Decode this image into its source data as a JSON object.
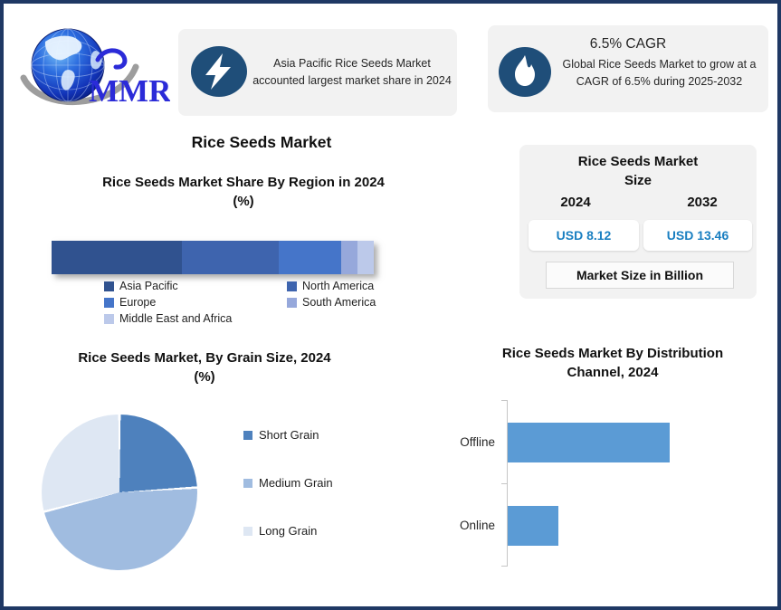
{
  "page": {
    "border_color": "#1F3864",
    "background": "#FFFFFF",
    "callout_bg": "#F2F2F2",
    "icon_circle_color": "#1F4E79"
  },
  "logo": {
    "text": "MMR",
    "text_color": "#2B2BD8"
  },
  "callouts": [
    {
      "icon": "lightning-icon",
      "text": "Asia Pacific Rice Seeds Market accounted largest market share in 2024"
    },
    {
      "icon": "flame-icon",
      "heading": "6.5% CAGR",
      "text": "Global Rice Seeds Market to grow at a CAGR of 6.5% during 2025-2032"
    }
  ],
  "main_title": "Rice Seeds Market",
  "market_size_panel": {
    "title": "Rice Seeds Market Size",
    "title_lines": [
      "Rice Seeds Market",
      "Size"
    ],
    "years": [
      "2024",
      "2032"
    ],
    "values": [
      "USD 8.12",
      "USD 13.46"
    ],
    "value_color": "#1A7FC1",
    "note": "Market Size in Billion"
  },
  "chart_data": [
    {
      "type": "bar",
      "subtype": "stacked-horizontal-100pct",
      "title": "Rice Seeds Market Share By Region in 2024 (%)",
      "title_lines": [
        "Rice Seeds Market Share By Region in 2024",
        "(%)"
      ],
      "unit": "%",
      "series": [
        {
          "name": "Asia Pacific",
          "value": 40.5,
          "color": "#30528F"
        },
        {
          "name": "North America",
          "value": 30,
          "color": "#3E64AE"
        },
        {
          "name": "Europe",
          "value": 19.5,
          "color": "#4575C9"
        },
        {
          "name": "South America",
          "value": 5,
          "color": "#96A8DB"
        },
        {
          "name": "Middle East and Africa",
          "value": 5,
          "color": "#BCC9EA"
        }
      ],
      "legend_position": "bottom",
      "axes_shown": false
    },
    {
      "type": "pie",
      "title": "Rice Seeds Market, By Grain Size, 2024 (%)",
      "title_lines": [
        "Rice Seeds Market, By Grain Size, 2024",
        "(%)"
      ],
      "unit": "%",
      "start_angle_deg": 0,
      "direction": "clockwise",
      "slices": [
        {
          "name": "Short Grain",
          "value": 24,
          "color": "#4E81BD"
        },
        {
          "name": "Medium Grain",
          "value": 47,
          "color": "#A0BCE0"
        },
        {
          "name": "Long Grain",
          "value": 29,
          "color": "#DEE7F3"
        }
      ],
      "legend_position": "right",
      "separator_color": "#FFFFFF"
    },
    {
      "type": "bar",
      "subtype": "horizontal",
      "title": "Rice Seeds Market By Distribution Channel, 2024",
      "title_lines": [
        "Rice Seeds Market By Distribution",
        "Channel, 2024"
      ],
      "categories": [
        "Offline",
        "Online"
      ],
      "values": [
        76,
        24
      ],
      "xlim": [
        0,
        100
      ],
      "bar_color": "#5B9BD5",
      "axis_color": "#C6C6C6",
      "value_labels_shown": false,
      "gridlines": false
    }
  ]
}
